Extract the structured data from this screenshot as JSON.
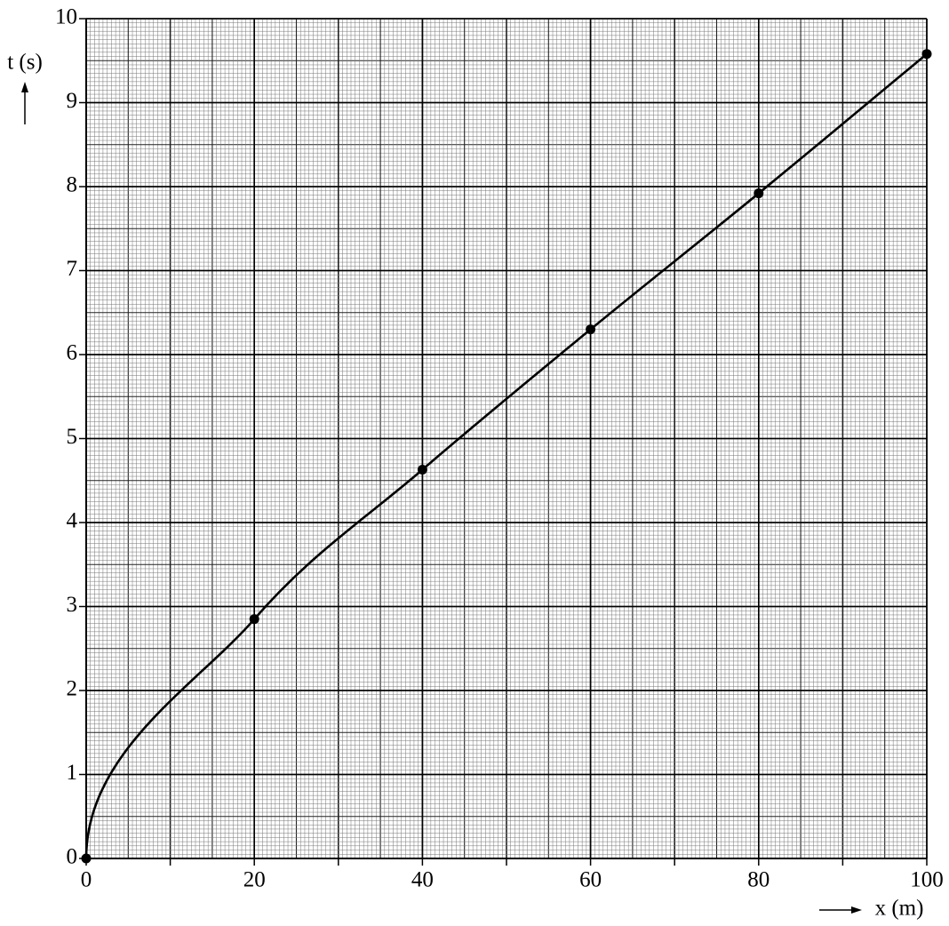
{
  "chart_data": {
    "type": "line",
    "xlabel": "x (m)",
    "ylabel": "t (s)",
    "x": [
      0,
      20,
      40,
      60,
      80,
      100
    ],
    "series": [
      {
        "color": "#000000",
        "values": [
          0,
          2.85,
          4.63,
          6.3,
          7.92,
          9.58
        ]
      }
    ],
    "xlim": [
      0,
      100
    ],
    "ylim": [
      0,
      10
    ],
    "xticks": [
      0,
      20,
      40,
      60,
      80,
      100
    ],
    "yticks": [
      0,
      1,
      2,
      3,
      4,
      5,
      6,
      7,
      8,
      9,
      10
    ],
    "grid": true,
    "markers": true
  }
}
